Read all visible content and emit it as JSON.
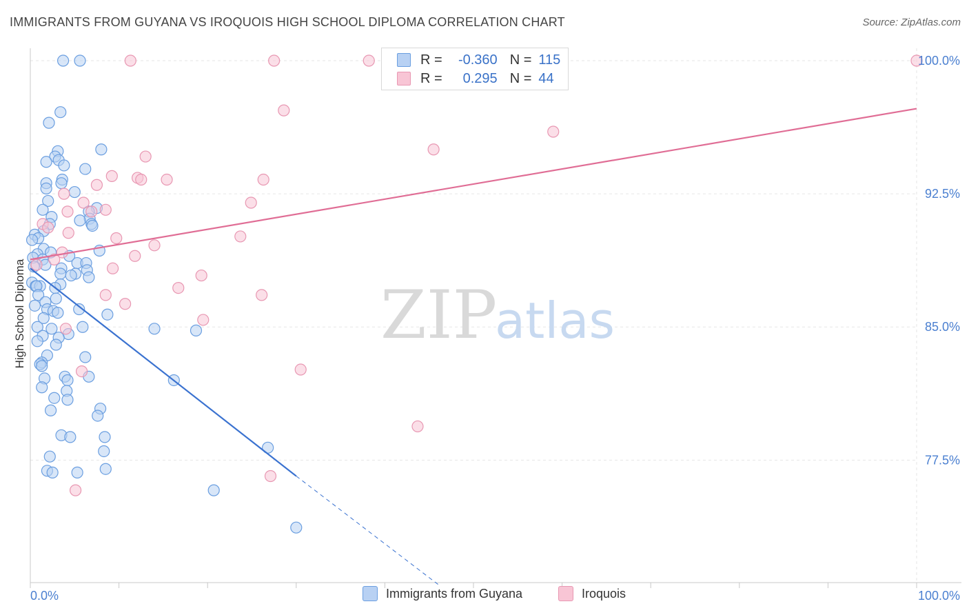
{
  "title": "IMMIGRANTS FROM GUYANA VS IROQUOIS HIGH SCHOOL DIPLOMA CORRELATION CHART",
  "source": "Source: ZipAtlas.com",
  "watermark": {
    "zip": "ZIP",
    "atlas": "atlas"
  },
  "legend": {
    "r_label": "R =",
    "n_label": "N =",
    "rows": [
      {
        "r": "-0.360",
        "n": "115",
        "fill": "#b8d1f3",
        "stroke": "#6a9ee0"
      },
      {
        "r": "0.295",
        "n": "44",
        "fill": "#f8c5d5",
        "stroke": "#e897b2"
      }
    ]
  },
  "bottom_legend": [
    {
      "label": "Immigrants from Guyana",
      "fill": "#b8d1f3",
      "stroke": "#6a9ee0"
    },
    {
      "label": "Iroquois",
      "fill": "#f8c5d5",
      "stroke": "#e897b2"
    }
  ],
  "chart_data": {
    "type": "scatter",
    "ylabel": "High School Diploma",
    "xlim": [
      0,
      100
    ],
    "ylim": [
      70.6,
      100.7
    ],
    "x_tick_labels": [
      "0.0%",
      "100.0%"
    ],
    "y_ticks": [
      77.5,
      85.0,
      92.5,
      100.0
    ],
    "y_tick_labels": [
      "77.5%",
      "85.0%",
      "92.5%",
      "100.0%"
    ],
    "grid": true,
    "colors": {
      "blue": "#3a72d0",
      "pink": "#e06d95",
      "blue_fill": "#b8d1f3",
      "pink_fill": "#f8c5d5",
      "grid": "#e6e6e6"
    },
    "series": [
      {
        "name": "Immigrants from Guyana",
        "trend": {
          "x": [
            0,
            30
          ],
          "y": [
            88.3,
            76.6
          ],
          "dashed_to": {
            "x": 46,
            "y": 70.5
          }
        },
        "points": [
          [
            3.7,
            100
          ],
          [
            5.6,
            100
          ],
          [
            3.4,
            97.1
          ],
          [
            2.1,
            96.5
          ],
          [
            8.0,
            95.0
          ],
          [
            3.1,
            94.9
          ],
          [
            2.8,
            94.6
          ],
          [
            3.2,
            94.4
          ],
          [
            1.8,
            94.3
          ],
          [
            3.8,
            94.1
          ],
          [
            6.2,
            93.9
          ],
          [
            3.6,
            93.3
          ],
          [
            1.8,
            93.1
          ],
          [
            3.5,
            93.1
          ],
          [
            1.8,
            92.8
          ],
          [
            5.0,
            92.6
          ],
          [
            2.0,
            92.1
          ],
          [
            7.5,
            91.7
          ],
          [
            1.4,
            91.6
          ],
          [
            6.6,
            91.5
          ],
          [
            2.4,
            91.2
          ],
          [
            6.7,
            91.1
          ],
          [
            5.6,
            91.0
          ],
          [
            2.2,
            90.8
          ],
          [
            6.9,
            90.8
          ],
          [
            7.0,
            90.7
          ],
          [
            1.5,
            90.4
          ],
          [
            0.5,
            90.2
          ],
          [
            0.9,
            90.0
          ],
          [
            0.2,
            89.9
          ],
          [
            1.5,
            89.4
          ],
          [
            7.8,
            89.3
          ],
          [
            2.3,
            89.2
          ],
          [
            0.8,
            89.1
          ],
          [
            4.4,
            89.0
          ],
          [
            0.3,
            88.9
          ],
          [
            1.4,
            88.8
          ],
          [
            5.3,
            88.6
          ],
          [
            6.3,
            88.6
          ],
          [
            1.7,
            88.5
          ],
          [
            0.4,
            88.4
          ],
          [
            3.5,
            88.3
          ],
          [
            6.4,
            88.2
          ],
          [
            3.4,
            88.0
          ],
          [
            5.1,
            88.0
          ],
          [
            4.6,
            87.9
          ],
          [
            6.6,
            87.8
          ],
          [
            0.2,
            87.5
          ],
          [
            3.4,
            87.4
          ],
          [
            0.6,
            87.3
          ],
          [
            1.1,
            87.3
          ],
          [
            0.7,
            87.3
          ],
          [
            2.8,
            87.2
          ],
          [
            0.9,
            86.8
          ],
          [
            2.9,
            86.6
          ],
          [
            1.7,
            86.4
          ],
          [
            0.5,
            86.2
          ],
          [
            5.5,
            86.0
          ],
          [
            1.9,
            86.0
          ],
          [
            2.6,
            85.9
          ],
          [
            3.1,
            85.8
          ],
          [
            8.7,
            85.7
          ],
          [
            1.5,
            85.5
          ],
          [
            0.8,
            85.0
          ],
          [
            5.9,
            85.0
          ],
          [
            2.4,
            84.9
          ],
          [
            14.0,
            84.9
          ],
          [
            18.7,
            84.8
          ],
          [
            4.3,
            84.6
          ],
          [
            1.4,
            84.5
          ],
          [
            3.2,
            84.4
          ],
          [
            0.8,
            84.2
          ],
          [
            2.9,
            84.0
          ],
          [
            1.9,
            83.4
          ],
          [
            6.2,
            83.3
          ],
          [
            1.3,
            83.0
          ],
          [
            1.1,
            82.9
          ],
          [
            1.3,
            82.8
          ],
          [
            3.9,
            82.2
          ],
          [
            6.6,
            82.2
          ],
          [
            1.6,
            82.1
          ],
          [
            4.2,
            82.0
          ],
          [
            16.2,
            82.0
          ],
          [
            1.3,
            81.6
          ],
          [
            4.1,
            81.4
          ],
          [
            2.7,
            81.0
          ],
          [
            4.2,
            80.9
          ],
          [
            7.9,
            80.4
          ],
          [
            2.3,
            80.3
          ],
          [
            7.6,
            80.0
          ],
          [
            3.5,
            78.9
          ],
          [
            4.5,
            78.8
          ],
          [
            8.4,
            78.8
          ],
          [
            26.8,
            78.2
          ],
          [
            8.3,
            78.0
          ],
          [
            2.2,
            77.7
          ],
          [
            8.5,
            77.0
          ],
          [
            1.9,
            76.9
          ],
          [
            2.5,
            76.8
          ],
          [
            5.3,
            76.8
          ],
          [
            20.7,
            75.8
          ],
          [
            30.0,
            73.7
          ]
        ]
      },
      {
        "name": "Iroquois",
        "trend": {
          "x": [
            0,
            100
          ],
          "y": [
            88.8,
            97.3
          ]
        },
        "points": [
          [
            11.3,
            100
          ],
          [
            27.5,
            100
          ],
          [
            38.2,
            100
          ],
          [
            100,
            100
          ],
          [
            28.6,
            97.2
          ],
          [
            59.0,
            96.0
          ],
          [
            45.5,
            95.0
          ],
          [
            13.0,
            94.6
          ],
          [
            9.2,
            93.5
          ],
          [
            12.1,
            93.4
          ],
          [
            12.5,
            93.3
          ],
          [
            26.3,
            93.3
          ],
          [
            15.4,
            93.3
          ],
          [
            7.5,
            93.0
          ],
          [
            3.8,
            92.5
          ],
          [
            24.9,
            92.0
          ],
          [
            6.0,
            92.0
          ],
          [
            8.5,
            91.6
          ],
          [
            6.9,
            91.5
          ],
          [
            4.2,
            91.5
          ],
          [
            1.4,
            90.8
          ],
          [
            2.0,
            90.6
          ],
          [
            4.3,
            90.3
          ],
          [
            23.7,
            90.1
          ],
          [
            9.7,
            90.0
          ],
          [
            14.0,
            89.6
          ],
          [
            3.6,
            89.2
          ],
          [
            11.8,
            89.0
          ],
          [
            2.7,
            88.8
          ],
          [
            0.7,
            88.5
          ],
          [
            9.3,
            88.3
          ],
          [
            19.3,
            87.9
          ],
          [
            16.7,
            87.2
          ],
          [
            26.1,
            86.8
          ],
          [
            8.5,
            86.8
          ],
          [
            10.7,
            86.3
          ],
          [
            19.5,
            85.4
          ],
          [
            4.0,
            84.9
          ],
          [
            30.5,
            82.6
          ],
          [
            5.8,
            82.5
          ],
          [
            43.7,
            79.4
          ],
          [
            27.1,
            76.6
          ],
          [
            5.1,
            75.8
          ]
        ]
      }
    ]
  }
}
